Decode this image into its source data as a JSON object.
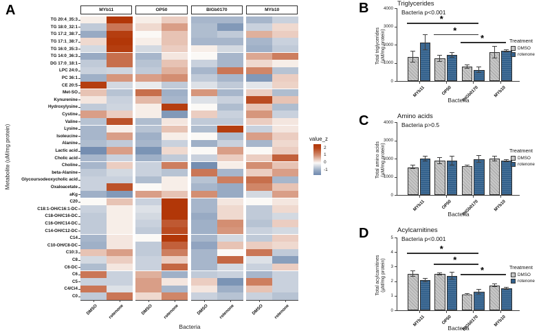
{
  "figure": {
    "panel_a": {
      "letter": "A",
      "ylabel": "Metabolite (uM/mg protein)",
      "xlabel": "Bacteria"
    },
    "panel_b": {
      "letter": "B",
      "title": "Triglycerides",
      "annotation": "Bacteria p<0.001",
      "ylabel": "Total triglycerides",
      "ylabel2": "(µM/mg protein)",
      "xlabel": "Bacteria"
    },
    "panel_c": {
      "letter": "C",
      "title": "Amino acids",
      "annotation": "Bacteria p>0.5",
      "ylabel": "Total amino acids",
      "ylabel2": "(µM/mg protein)",
      "xlabel": "Bacteria"
    },
    "panel_d": {
      "letter": "D",
      "title": "Acylcarnitines",
      "annotation": "Bacteria p<0.001",
      "ylabel": "Total acylcarnitines",
      "ylabel2": "(µM/mg protein)",
      "xlabel": "Bacteria"
    },
    "treatment_legend": {
      "title": "Treatment",
      "items": [
        {
          "label": "DMSO",
          "color": "#C6C6C6"
        },
        {
          "label": "rotenone",
          "color": "#33618C"
        }
      ]
    },
    "heatmap_legend": {
      "title": "value_z",
      "ticks": [
        "2",
        "1",
        "0",
        "-1"
      ]
    },
    "colors": {
      "heat_pos": "#B23708",
      "heat_neg": "#6E89AE",
      "bar_gray": "#C6C6C6",
      "bar_blue": "#33618C"
    }
  },
  "chart_data": [
    {
      "type": "heatmap",
      "title": "Metabolite z-scores by bacteria and treatment",
      "ylabel": "Metabolite (uM/mg protein)",
      "xlabel": "Bacteria",
      "col_groups": [
        "MYb11",
        "OP50",
        "BIGb0170",
        "MYb10"
      ],
      "col_treatments": [
        "DMSO",
        "rotenone"
      ],
      "columns": [
        "MYb11 DMSO",
        "MYb11 rotenone",
        "OP50 DMSO",
        "OP50 rotenone",
        "BIGb0170 DMSO",
        "BIGb0170 rotenone",
        "MYb10 DMSO",
        "MYb10 rotenone"
      ],
      "legend": {
        "title": "value_z",
        "ticks": [
          2,
          1,
          0,
          -1
        ],
        "range": [
          -1.6,
          2.5
        ]
      },
      "rows": [
        "TG 20:4_35:3",
        "TG 18:0_32:1",
        "TG 17:2_38:7",
        "TG 17:1_38:7",
        "TG 16:0_35:3",
        "TG 14:0_36:3",
        "DG 17:0_18:1",
        "LPC 24:0",
        "PC 36:1",
        "CE 20:5",
        "Met-SO",
        "Kynurenine",
        "Hydroxylysine",
        "Cystine",
        "Valine",
        "Lysine",
        "Isoleucine",
        "Alanine",
        "Lactic acid",
        "Cholic acid",
        "Choline",
        "beta-Alanine",
        "Glycoursodeoxycholic acid",
        "Oxaloacetate",
        "aKg",
        "C20",
        "C18:1-OH/C16:1-DC",
        "C18-OH/C16-DC",
        "C16-OH/C14-DC",
        "C14-OH/C12-DC",
        "C14",
        "C10-OH/C8-DC",
        "C10:3",
        "C8",
        "C6-DC",
        "C6",
        "C5",
        "C4/Ci4",
        "C0"
      ],
      "values": [
        [
          0.05,
          2.2,
          0.05,
          0.3,
          -0.8,
          -0.8,
          -0.8,
          -0.4
        ],
        [
          -0.5,
          1.3,
          0.2,
          0.8,
          -0.7,
          -1.3,
          -0.4,
          0.2
        ],
        [
          -1.0,
          2.1,
          0.0,
          0.4,
          -0.7,
          -0.5,
          0.6,
          0.3
        ],
        [
          0.2,
          2.2,
          0.05,
          0.4,
          -0.8,
          -0.8,
          -0.8,
          -0.4
        ],
        [
          -0.3,
          2.1,
          -0.3,
          0.3,
          0.05,
          -0.3,
          -0.9,
          -0.5
        ],
        [
          -1.0,
          1.4,
          -0.8,
          0.1,
          0.0,
          -0.8,
          0.7,
          1.2
        ],
        [
          -0.5,
          1.4,
          -0.6,
          0.4,
          -0.4,
          -0.8,
          0.2,
          0.05
        ],
        [
          -0.4,
          -0.35,
          -0.5,
          0.6,
          -0.8,
          1.3,
          1.1,
          -0.6
        ],
        [
          -0.9,
          0.9,
          0.8,
          1.0,
          -0.5,
          -0.8,
          -1.3,
          0.3
        ],
        [
          2.1,
          -0.3,
          -0.1,
          -0.5,
          -0.2,
          -0.5,
          -0.15,
          0.25
        ],
        [
          0.4,
          -0.6,
          1.4,
          -0.9,
          0.9,
          -0.8,
          0.3,
          -0.7
        ],
        [
          0.1,
          -0.4,
          0.5,
          -0.8,
          -0.2,
          -0.4,
          1.9,
          0.4
        ],
        [
          -0.5,
          -0.35,
          0.05,
          2.1,
          0.0,
          -0.7,
          0.4,
          -0.7
        ],
        [
          0.8,
          0.3,
          0.05,
          -1.3,
          0.3,
          -0.4,
          0.9,
          -0.4
        ],
        [
          -0.6,
          1.8,
          -0.7,
          0.1,
          -0.5,
          -0.5,
          0.3,
          0.1
        ],
        [
          -0.8,
          0.05,
          -0.6,
          0.4,
          -0.7,
          2.1,
          -0.4,
          0.1
        ],
        [
          -0.8,
          0.8,
          -0.9,
          0.05,
          0.0,
          -0.7,
          0.8,
          0.3
        ],
        [
          -0.7,
          -0.5,
          -0.8,
          -0.4,
          -0.9,
          -0.4,
          -0.8,
          0.2
        ],
        [
          -1.5,
          0.8,
          -1.4,
          0.2,
          0.0,
          0.8,
          0.0,
          0.3
        ],
        [
          -0.8,
          -0.4,
          -0.9,
          -0.5,
          -0.4,
          0.3,
          0.3,
          1.6
        ],
        [
          -0.8,
          0.3,
          -0.4,
          1.2,
          -1.5,
          0.05,
          1.0,
          0.4
        ],
        [
          -0.5,
          -0.3,
          -0.4,
          -0.6,
          1.3,
          -0.8,
          0.3,
          0.8
        ],
        [
          -0.4,
          -0.4,
          -0.7,
          0.05,
          -0.6,
          1.2,
          1.4,
          -0.8
        ],
        [
          -0.4,
          1.8,
          0.0,
          0.05,
          -0.8,
          -1.0,
          1.1,
          0.4
        ],
        [
          -0.9,
          -1.3,
          0.8,
          0.4,
          1.0,
          -1.0,
          -0.3,
          0.8
        ],
        [
          0.0,
          0.4,
          -0.4,
          2.2,
          -0.8,
          0.1,
          0.0,
          0.1
        ],
        [
          -0.4,
          0.05,
          -0.2,
          2.2,
          -0.8,
          0.2,
          -0.5,
          0.2
        ],
        [
          -0.5,
          0.05,
          -0.3,
          2.2,
          -1.0,
          0.2,
          -0.5,
          -0.3
        ],
        [
          -0.5,
          0.05,
          -0.4,
          1.7,
          -0.9,
          1.0,
          -0.6,
          0.3
        ],
        [
          -0.5,
          0.05,
          -0.5,
          1.9,
          -0.9,
          0.9,
          -0.4,
          -0.3
        ],
        [
          -0.8,
          0.1,
          0.0,
          2.2,
          -0.8,
          -0.3,
          -0.5,
          0.3
        ],
        [
          -0.9,
          0.1,
          -0.5,
          1.6,
          -1.1,
          0.4,
          0.3,
          0.2
        ],
        [
          0.4,
          0.8,
          -0.5,
          1.2,
          -0.8,
          0.0,
          1.3,
          -0.5
        ],
        [
          -0.3,
          0.3,
          -0.4,
          0.3,
          -0.8,
          1.5,
          -0.2,
          -1.2
        ],
        [
          -0.7,
          0.1,
          -0.4,
          1.5,
          -0.8,
          -0.3,
          -0.4,
          0.3
        ],
        [
          1.3,
          -0.4,
          0.6,
          -0.9,
          -0.5,
          -0.4,
          -0.8,
          -0.4
        ],
        [
          -0.4,
          -0.4,
          0.8,
          0.1,
          0.3,
          -1.4,
          1.2,
          -0.4
        ],
        [
          1.3,
          -0.2,
          0.8,
          -0.8,
          0.1,
          -0.9,
          0.4,
          -0.4
        ],
        [
          -0.5,
          1.3,
          0.2,
          1.1,
          -0.4,
          -0.6,
          -0.4,
          -0.6
        ]
      ]
    },
    {
      "type": "bar",
      "title": "Triglycerides",
      "annotation": "Bacteria p<0.001",
      "ylabel": "Total triglycerides (µM/mg protein)",
      "xlabel": "Bacteria",
      "categories": [
        "MYb11",
        "OP50",
        "BIGb0170",
        "MYb10"
      ],
      "ylim": [
        0,
        4000
      ],
      "yticks": [
        0,
        1000,
        2000,
        3000,
        4000
      ],
      "series": [
        {
          "name": "DMSO",
          "values": [
            1320,
            1250,
            780,
            1580
          ],
          "err_lo": [
            1020,
            1080,
            690,
            1260
          ],
          "err_hi": [
            1650,
            1430,
            880,
            1910
          ]
        },
        {
          "name": "rotenone",
          "values": [
            2120,
            1430,
            620,
            1650
          ],
          "err_lo": [
            1700,
            1300,
            480,
            1590
          ],
          "err_hi": [
            2550,
            1560,
            770,
            1720
          ]
        }
      ],
      "sig_bars": [
        {
          "from": 0,
          "to": 2,
          "y": 3200,
          "label": "*"
        },
        {
          "from": 1,
          "to": 2,
          "y": 2570,
          "label": "*"
        },
        {
          "from": 2,
          "to": 3,
          "y": 2150,
          "label": "*"
        }
      ]
    },
    {
      "type": "bar",
      "title": "Amino acids",
      "annotation": "Bacteria p>0.5",
      "ylabel": "Total amino acids (µM/mg protein)",
      "xlabel": "Bacteria",
      "categories": [
        "MYb11",
        "OP50",
        "BIGb0170",
        "MYb10"
      ],
      "ylim": [
        0,
        4000
      ],
      "yticks": [
        0,
        1000,
        2000,
        3000,
        4000
      ],
      "series": [
        {
          "name": "DMSO",
          "values": [
            1520,
            1880,
            1600,
            2000
          ],
          "err_lo": [
            1440,
            1710,
            1560,
            1880
          ],
          "err_hi": [
            1630,
            2040,
            1660,
            2120
          ]
        },
        {
          "name": "rotenone",
          "values": [
            2000,
            1870,
            1960,
            1870
          ],
          "err_lo": [
            1880,
            1650,
            1780,
            1820
          ],
          "err_hi": [
            2120,
            2120,
            2170,
            1930
          ]
        }
      ],
      "sig_bars": []
    },
    {
      "type": "bar",
      "title": "Acylcarnitines",
      "annotation": "Bacteria p<0.001",
      "ylabel": "Total acylcarnitines (µM/mg protein)",
      "xlabel": "Bacteria",
      "categories": [
        "MYb11",
        "OP50",
        "BIGb0170",
        "MYb10"
      ],
      "ylim": [
        0,
        5
      ],
      "yticks": [
        0,
        1,
        2,
        3,
        4,
        5
      ],
      "series": [
        {
          "name": "DMSO",
          "values": [
            2.52,
            2.5,
            1.1,
            1.72
          ],
          "err_lo": [
            2.32,
            2.43,
            1.04,
            1.62
          ],
          "err_hi": [
            2.72,
            2.57,
            1.16,
            1.81
          ]
        },
        {
          "name": "rotenone",
          "values": [
            2.07,
            2.36,
            1.27,
            1.51
          ],
          "err_lo": [
            1.95,
            2.14,
            1.1,
            1.46
          ],
          "err_hi": [
            2.2,
            2.6,
            1.45,
            1.56
          ]
        }
      ],
      "sig_bars": [
        {
          "from": 0,
          "to": 2,
          "y": 3.95,
          "label": "*"
        },
        {
          "from": 1,
          "to": 2,
          "y": 3.2,
          "label": "*"
        },
        {
          "from": 2,
          "to": 3,
          "y": 2.5,
          "label": "*"
        }
      ]
    }
  ]
}
